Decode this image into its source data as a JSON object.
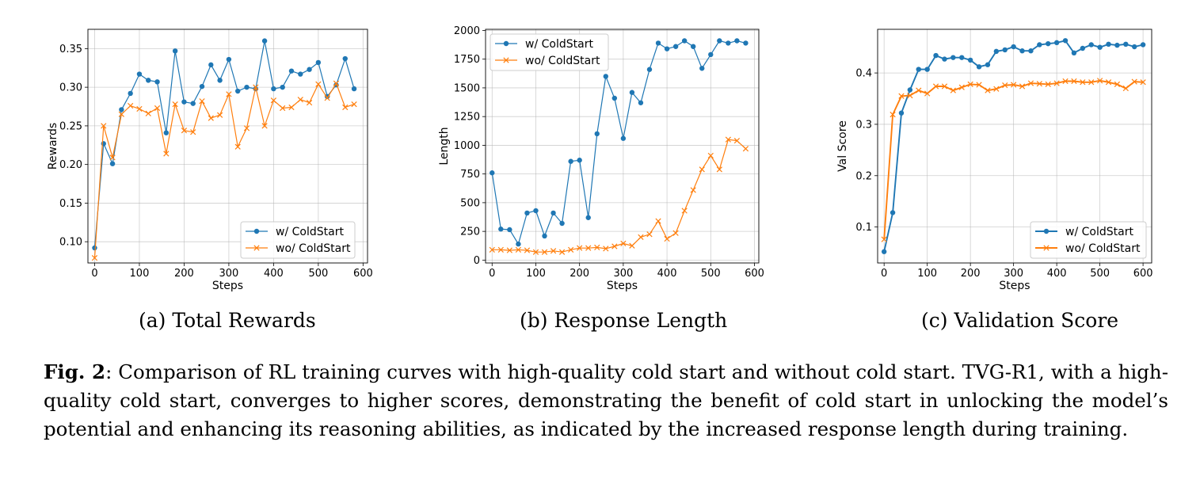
{
  "series_colors": {
    "with": "#1f77b4",
    "without": "#ff7f0e"
  },
  "chart_data": [
    {
      "type": "line",
      "subcaption": "(a) Total Rewards",
      "xlabel": "Steps",
      "ylabel": "Rewards",
      "xlim": [
        -15,
        610
      ],
      "ylim": [
        0.0725,
        0.375
      ],
      "xticks": [
        0,
        100,
        200,
        300,
        400,
        500,
        600
      ],
      "xtick_labels": [
        "0",
        "100",
        "200",
        "300",
        "400",
        "500",
        "600"
      ],
      "yticks": [
        0.1,
        0.15,
        0.2,
        0.25,
        0.3,
        0.35
      ],
      "ytick_labels": [
        "0.10",
        "0.15",
        "0.20",
        "0.25",
        "0.30",
        "0.35"
      ],
      "grid": true,
      "legend_position": "bottom-right",
      "series": [
        {
          "name": "w/ ColdStart",
          "marker": "dot",
          "color": "#1f77b4",
          "x": [
            0,
            20,
            40,
            60,
            80,
            100,
            120,
            140,
            160,
            180,
            200,
            220,
            240,
            260,
            280,
            300,
            320,
            340,
            360,
            380,
            400,
            420,
            440,
            460,
            480,
            500,
            520,
            540,
            560,
            580
          ],
          "y": [
            0.092,
            0.227,
            0.201,
            0.271,
            0.292,
            0.317,
            0.309,
            0.307,
            0.241,
            0.347,
            0.281,
            0.279,
            0.301,
            0.329,
            0.309,
            0.336,
            0.295,
            0.3,
            0.298,
            0.36,
            0.298,
            0.3,
            0.321,
            0.317,
            0.323,
            0.332,
            0.288,
            0.303,
            0.337,
            0.298
          ]
        },
        {
          "name": "wo/ ColdStart",
          "marker": "x",
          "color": "#ff7f0e",
          "x": [
            0,
            20,
            40,
            60,
            80,
            100,
            120,
            140,
            160,
            180,
            200,
            220,
            240,
            260,
            280,
            300,
            320,
            340,
            360,
            380,
            400,
            420,
            440,
            460,
            480,
            500,
            520,
            540,
            560,
            580
          ],
          "y": [
            0.079,
            0.25,
            0.209,
            0.265,
            0.276,
            0.272,
            0.266,
            0.273,
            0.214,
            0.278,
            0.244,
            0.242,
            0.282,
            0.26,
            0.264,
            0.291,
            0.223,
            0.247,
            0.3,
            0.25,
            0.283,
            0.273,
            0.274,
            0.284,
            0.28,
            0.304,
            0.286,
            0.305,
            0.274,
            0.278
          ]
        }
      ]
    },
    {
      "type": "line",
      "subcaption": "(b) Response Length",
      "xlabel": "Steps",
      "ylabel": "Length",
      "xlim": [
        -15,
        610
      ],
      "ylim": [
        -25,
        2010
      ],
      "xticks": [
        0,
        100,
        200,
        300,
        400,
        500,
        600
      ],
      "xtick_labels": [
        "0",
        "100",
        "200",
        "300",
        "400",
        "500",
        "600"
      ],
      "yticks": [
        0,
        250,
        500,
        750,
        1000,
        1250,
        1500,
        1750,
        2000
      ],
      "ytick_labels": [
        "0",
        "250",
        "500",
        "750",
        "1000",
        "1250",
        "1500",
        "1750",
        "2000"
      ],
      "grid": true,
      "legend_position": "top-left",
      "series": [
        {
          "name": "w/ ColdStart",
          "marker": "dot",
          "color": "#1f77b4",
          "x": [
            0,
            20,
            40,
            60,
            80,
            100,
            120,
            140,
            160,
            180,
            200,
            220,
            240,
            260,
            280,
            300,
            320,
            340,
            360,
            380,
            400,
            420,
            440,
            460,
            480,
            500,
            520,
            540,
            560,
            580
          ],
          "y": [
            760,
            270,
            265,
            140,
            410,
            430,
            210,
            410,
            320,
            860,
            870,
            370,
            1100,
            1600,
            1410,
            1060,
            1460,
            1370,
            1660,
            1890,
            1840,
            1860,
            1910,
            1860,
            1670,
            1790,
            1910,
            1890,
            1910,
            1890
          ]
        },
        {
          "name": "wo/ ColdStart",
          "marker": "x",
          "color": "#ff7f0e",
          "x": [
            0,
            20,
            40,
            60,
            80,
            100,
            120,
            140,
            160,
            180,
            200,
            220,
            240,
            260,
            280,
            300,
            320,
            340,
            360,
            380,
            400,
            420,
            440,
            460,
            480,
            500,
            520,
            540,
            560,
            580
          ],
          "y": [
            90,
            90,
            85,
            90,
            85,
            70,
            70,
            80,
            70,
            90,
            105,
            105,
            110,
            100,
            120,
            145,
            125,
            200,
            225,
            340,
            185,
            235,
            430,
            610,
            790,
            910,
            790,
            1050,
            1040,
            970
          ]
        }
      ]
    },
    {
      "type": "line",
      "subcaption": "(c) Validation Score",
      "xlabel": "Steps",
      "ylabel": "Val Score",
      "xlim": [
        -15,
        620
      ],
      "ylim": [
        0.03,
        0.485
      ],
      "xticks": [
        0,
        100,
        200,
        300,
        400,
        500,
        600
      ],
      "xtick_labels": [
        "0",
        "100",
        "200",
        "300",
        "400",
        "500",
        "600"
      ],
      "yticks": [
        0.1,
        0.2,
        0.3,
        0.4
      ],
      "ytick_labels": [
        "0.1",
        "0.2",
        "0.3",
        "0.4"
      ],
      "grid": true,
      "legend_position": "bottom-right",
      "series": [
        {
          "name": "w/ ColdStart",
          "marker": "dot",
          "color": "#1f77b4",
          "x": [
            0,
            20,
            40,
            60,
            80,
            100,
            120,
            140,
            160,
            180,
            200,
            220,
            240,
            260,
            280,
            300,
            320,
            340,
            360,
            380,
            400,
            420,
            440,
            460,
            480,
            500,
            520,
            540,
            560,
            580,
            600
          ],
          "y": [
            0.052,
            0.128,
            0.322,
            0.367,
            0.407,
            0.407,
            0.434,
            0.427,
            0.43,
            0.43,
            0.425,
            0.412,
            0.416,
            0.442,
            0.445,
            0.451,
            0.443,
            0.443,
            0.455,
            0.457,
            0.459,
            0.463,
            0.439,
            0.448,
            0.455,
            0.45,
            0.456,
            0.454,
            0.456,
            0.451,
            0.455
          ]
        },
        {
          "name": "wo/ ColdStart",
          "marker": "x",
          "color": "#ff7f0e",
          "x": [
            0,
            20,
            40,
            60,
            80,
            100,
            120,
            140,
            160,
            180,
            200,
            220,
            240,
            260,
            280,
            300,
            320,
            340,
            360,
            380,
            400,
            420,
            440,
            460,
            480,
            500,
            520,
            540,
            560,
            580,
            600
          ],
          "y": [
            0.076,
            0.319,
            0.355,
            0.356,
            0.366,
            0.36,
            0.374,
            0.374,
            0.366,
            0.372,
            0.378,
            0.377,
            0.366,
            0.369,
            0.376,
            0.377,
            0.374,
            0.38,
            0.379,
            0.378,
            0.38,
            0.384,
            0.384,
            0.382,
            0.382,
            0.385,
            0.382,
            0.378,
            0.37,
            0.383,
            0.382
          ]
        }
      ]
    }
  ],
  "caption": {
    "label": "Fig. 2",
    "text": ": Comparison of RL training curves with high-quality cold start and without cold start. TVG-R1, with a high-quality cold start, converges to higher scores, demonstrating the benefit of cold start in unlocking the model’s potential and enhancing its reasoning abilities, as indicated by the increased response length during training."
  }
}
